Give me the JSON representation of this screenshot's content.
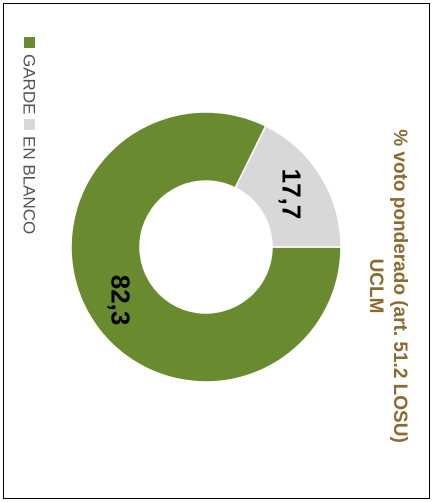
{
  "chart_data": {
    "type": "pie",
    "style": "donut",
    "orientation": "rotated-90-clockwise",
    "title": "% voto ponderado (art. 51.2 LOSU) UCLM",
    "title_lines": [
      "% voto ponderado (art. 51.2 LOSU)",
      "UCLM"
    ],
    "title_color": "#8a6a30",
    "legend_position": "left",
    "series": [
      {
        "name": "GARDE",
        "value": 82.3,
        "label": "82,3",
        "color": "#6a8a30"
      },
      {
        "name": "EN BLANCO",
        "value": 17.7,
        "label": "17,7",
        "color": "#d8d8d8"
      }
    ]
  }
}
